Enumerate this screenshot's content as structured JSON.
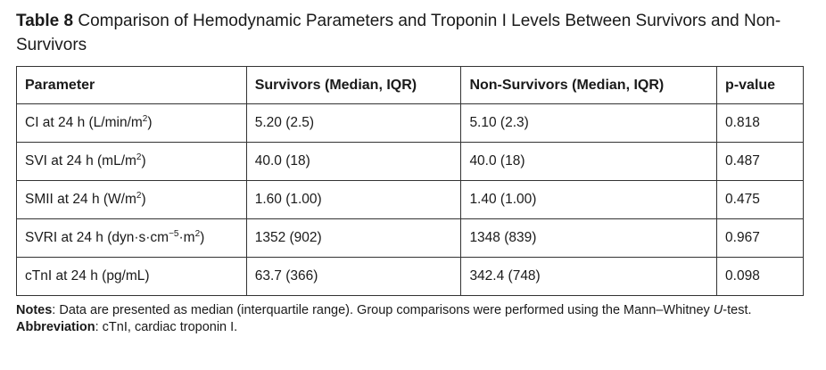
{
  "caption": {
    "label": "Table 8",
    "text": "Comparison of Hemodynamic Parameters and Troponin I Levels Between Survivors and Non-Survivors"
  },
  "table": {
    "headers": [
      "Parameter",
      "Survivors (Median, IQR)",
      "Non-Survivors (Median, IQR)",
      "p-value"
    ],
    "rows": [
      {
        "param_main": "CI at 24 h (L/min/m",
        "param_sup": "2",
        "param_tail": ")",
        "survivors": "5.20 (2.5)",
        "non_survivors": "5.10 (2.3)",
        "p_value": "0.818"
      },
      {
        "param_main": "SVI at 24 h (mL/m",
        "param_sup": "2",
        "param_tail": ")",
        "survivors": "40.0 (18)",
        "non_survivors": "40.0 (18)",
        "p_value": "0.487"
      },
      {
        "param_main": "SMII at 24 h (W/m",
        "param_sup": "2",
        "param_tail": ")",
        "survivors": "1.60 (1.00)",
        "non_survivors": "1.40 (1.00)",
        "p_value": "0.475"
      },
      {
        "param_main": "SVRI at 24 h (dyn·s·cm",
        "param_sup": "−5",
        "param_mid": "·m",
        "param_sup2": "2",
        "param_tail": ")",
        "survivors": "1352 (902)",
        "non_survivors": "1348 (839)",
        "p_value": "0.967"
      },
      {
        "param_main": "cTnI at 24 h (pg/mL)",
        "param_sup": "",
        "param_tail": "",
        "survivors": "63.7 (366)",
        "non_survivors": "342.4 (748)",
        "p_value": "0.098"
      }
    ]
  },
  "notes": {
    "notes_label": "Notes",
    "notes_text": ": Data are presented as median (interquartile range). Group comparisons were performed using the Mann–Whitney ",
    "notes_italic": "U",
    "notes_end": "-test.",
    "abbr_label": "Abbreviation",
    "abbr_text": ": cTnI, cardiac troponin I."
  }
}
